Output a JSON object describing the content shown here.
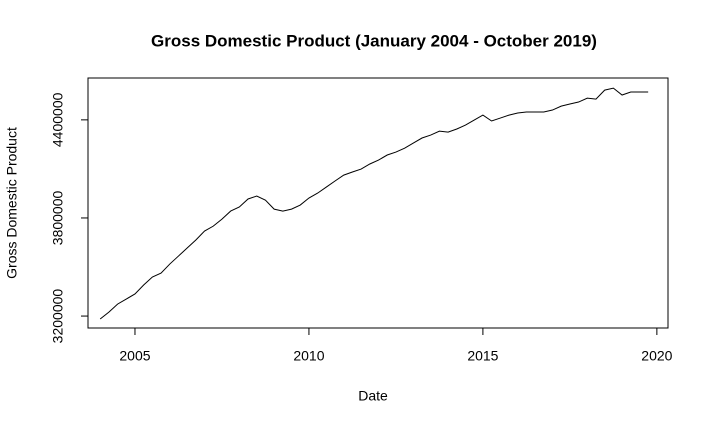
{
  "chart_data": {
    "type": "line",
    "title": "Gross Domestic Product (January 2004 - October 2019)",
    "x_label": "Date",
    "y_label": "Gross Domestic Product",
    "x": [
      2004,
      2004.25,
      2004.5,
      2004.75,
      2005,
      2005.25,
      2005.5,
      2005.75,
      2006,
      2006.25,
      2006.5,
      2006.75,
      2007,
      2007.25,
      2007.5,
      2007.75,
      2008,
      2008.25,
      2008.5,
      2008.75,
      2009,
      2009.25,
      2009.5,
      2009.75,
      2010,
      2010.25,
      2010.5,
      2010.75,
      2011,
      2011.25,
      2011.5,
      2011.75,
      2012,
      2012.25,
      2012.5,
      2012.75,
      2013,
      2013.25,
      2013.5,
      2013.75,
      2014,
      2014.25,
      2014.5,
      2014.75,
      2015,
      2015.25,
      2015.5,
      2015.75,
      2016,
      2016.25,
      2016.5,
      2016.75,
      2017,
      2017.25,
      2017.5,
      2017.75,
      2018,
      2018.25,
      2018.5,
      2018.75,
      2019,
      2019.25,
      2019.5,
      2019.75
    ],
    "series": [
      {
        "color": "#000000",
        "values": [
          3182000,
          3224000,
          3273000,
          3304000,
          3335000,
          3390000,
          3439000,
          3463000,
          3518000,
          3567000,
          3616000,
          3665000,
          3720000,
          3750000,
          3793000,
          3842000,
          3867000,
          3916000,
          3934000,
          3909000,
          3854000,
          3842000,
          3854000,
          3879000,
          3922000,
          3952000,
          3989000,
          4026000,
          4062000,
          4081000,
          4099000,
          4130000,
          4154000,
          4185000,
          4203000,
          4227000,
          4258000,
          4289000,
          4307000,
          4331000,
          4325000,
          4344000,
          4368000,
          4399000,
          4429000,
          4393000,
          4411000,
          4429000,
          4442000,
          4448000,
          4448000,
          4448000,
          4460000,
          4484000,
          4497000,
          4509000,
          4533000,
          4527000,
          4582000,
          4594000,
          4552000,
          4570000,
          4570000,
          4570000
        ]
      }
    ],
    "xlim": [
      2003.65,
      2020.32
    ],
    "xticks": [
      2005,
      2010,
      2015,
      2020
    ],
    "ylim": [
      3127000,
      4656000
    ],
    "yticks": [
      3200000,
      3800000,
      4400000
    ]
  }
}
